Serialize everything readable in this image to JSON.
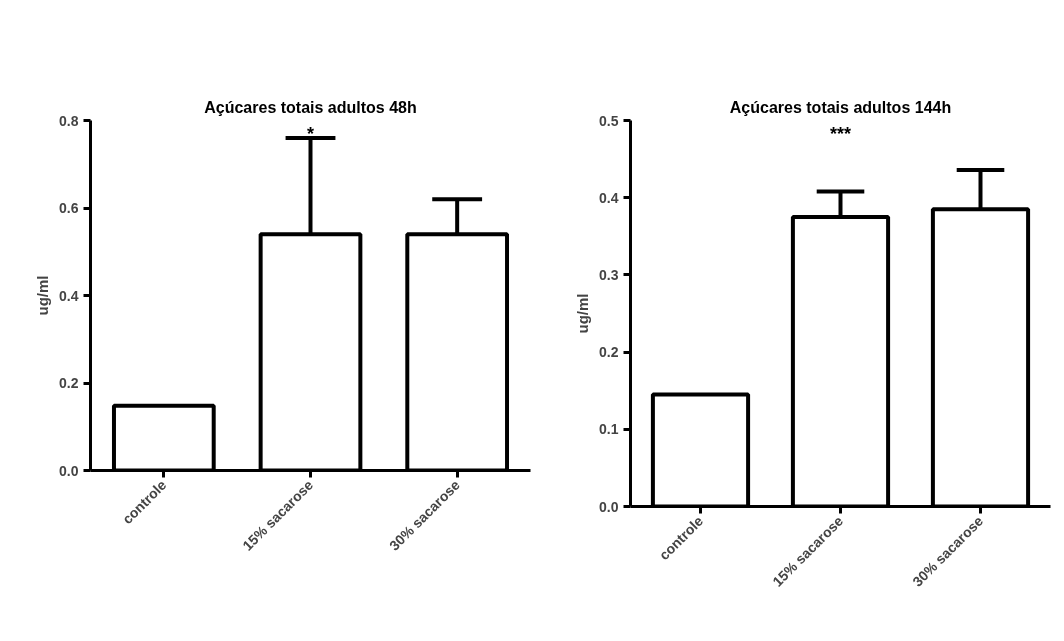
{
  "chart_data": [
    {
      "type": "bar",
      "title": "Açúcares totais adultos 48h",
      "ylabel": "ug/ml",
      "categories": [
        "controle",
        "15% sacarose",
        "30% sacarose"
      ],
      "values": [
        0.148,
        0.54,
        0.54
      ],
      "errors": [
        null,
        [
          0.54,
          0.76
        ],
        [
          0.54,
          0.62
        ]
      ],
      "color": "#ffffff",
      "ylim": [
        0,
        0.8
      ],
      "yticks": [
        {
          "value": 0,
          "label": "0.0"
        },
        0.2,
        0.4,
        0.6,
        0.8
      ],
      "grid": false,
      "annotations": [
        "*"
      ]
    },
    {
      "type": "bar",
      "title": "Açúcares totais adultos 144h",
      "ylabel": "ug/ml",
      "categories": [
        "controle",
        "15% sacarose",
        "30% sacarose"
      ],
      "values": [
        0.145,
        0.375,
        0.385
      ],
      "errors": [
        null,
        [
          0.375,
          0.408
        ],
        [
          0.385,
          0.436
        ]
      ],
      "color": "#ffffff",
      "ylim": [
        0,
        0.5
      ],
      "yticks": [
        {
          "value": 0,
          "label": "0.0"
        },
        0.1,
        0.2,
        0.3,
        0.4,
        0.5
      ],
      "grid": false,
      "annotations": [
        "***"
      ]
    }
  ]
}
